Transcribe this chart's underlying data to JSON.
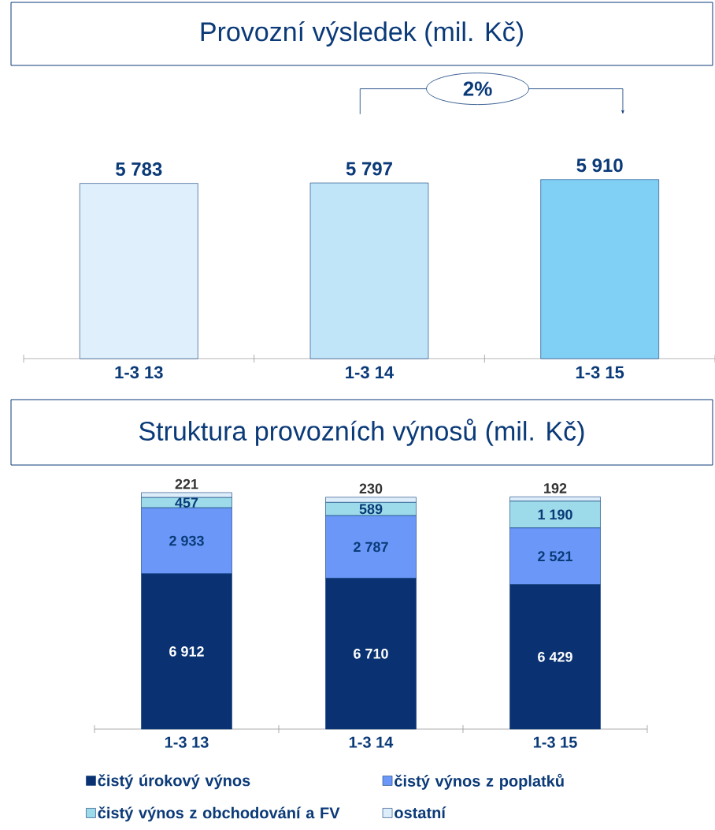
{
  "chart_data": [
    {
      "type": "bar",
      "title": "Provozní výsledek (mil. Kč)",
      "categories": [
        "1-3 13",
        "1-3 14",
        "1-3 15"
      ],
      "values": [
        5783,
        5797,
        5910
      ],
      "colors": [
        "#dff0fc",
        "#c0e4f8",
        "#80cff5"
      ],
      "value_labels": [
        "5 783",
        "5 797",
        "5 910"
      ],
      "annotations": [
        "2%"
      ]
    },
    {
      "type": "bar",
      "stacked": true,
      "title": "Struktura provozních výnosů (mil. Kč)",
      "categories": [
        "1-3 13",
        "1-3 14",
        "1-3 15"
      ],
      "legend": "bottom",
      "series": [
        {
          "name": "čistý úrokový výnos",
          "color": "#0a3272",
          "values": [
            6912,
            6710,
            6429
          ],
          "value_labels": [
            "6 912",
            "6 710",
            "6 429"
          ]
        },
        {
          "name": "čistý výnos z poplatků",
          "color": "#6b98f8",
          "values": [
            2933,
            2787,
            2521
          ],
          "value_labels": [
            "2 933",
            "2 787",
            "2 521"
          ]
        },
        {
          "name": "čistý výnos z obchodování a FV",
          "color": "#9ddbea",
          "values": [
            457,
            589,
            1190
          ],
          "value_labels": [
            "457",
            "589",
            "1 190"
          ]
        },
        {
          "name": "ostatní",
          "color": "#ddeefa",
          "values": [
            221,
            230,
            192
          ],
          "value_labels": [
            "221",
            "230",
            "192"
          ]
        }
      ]
    }
  ]
}
